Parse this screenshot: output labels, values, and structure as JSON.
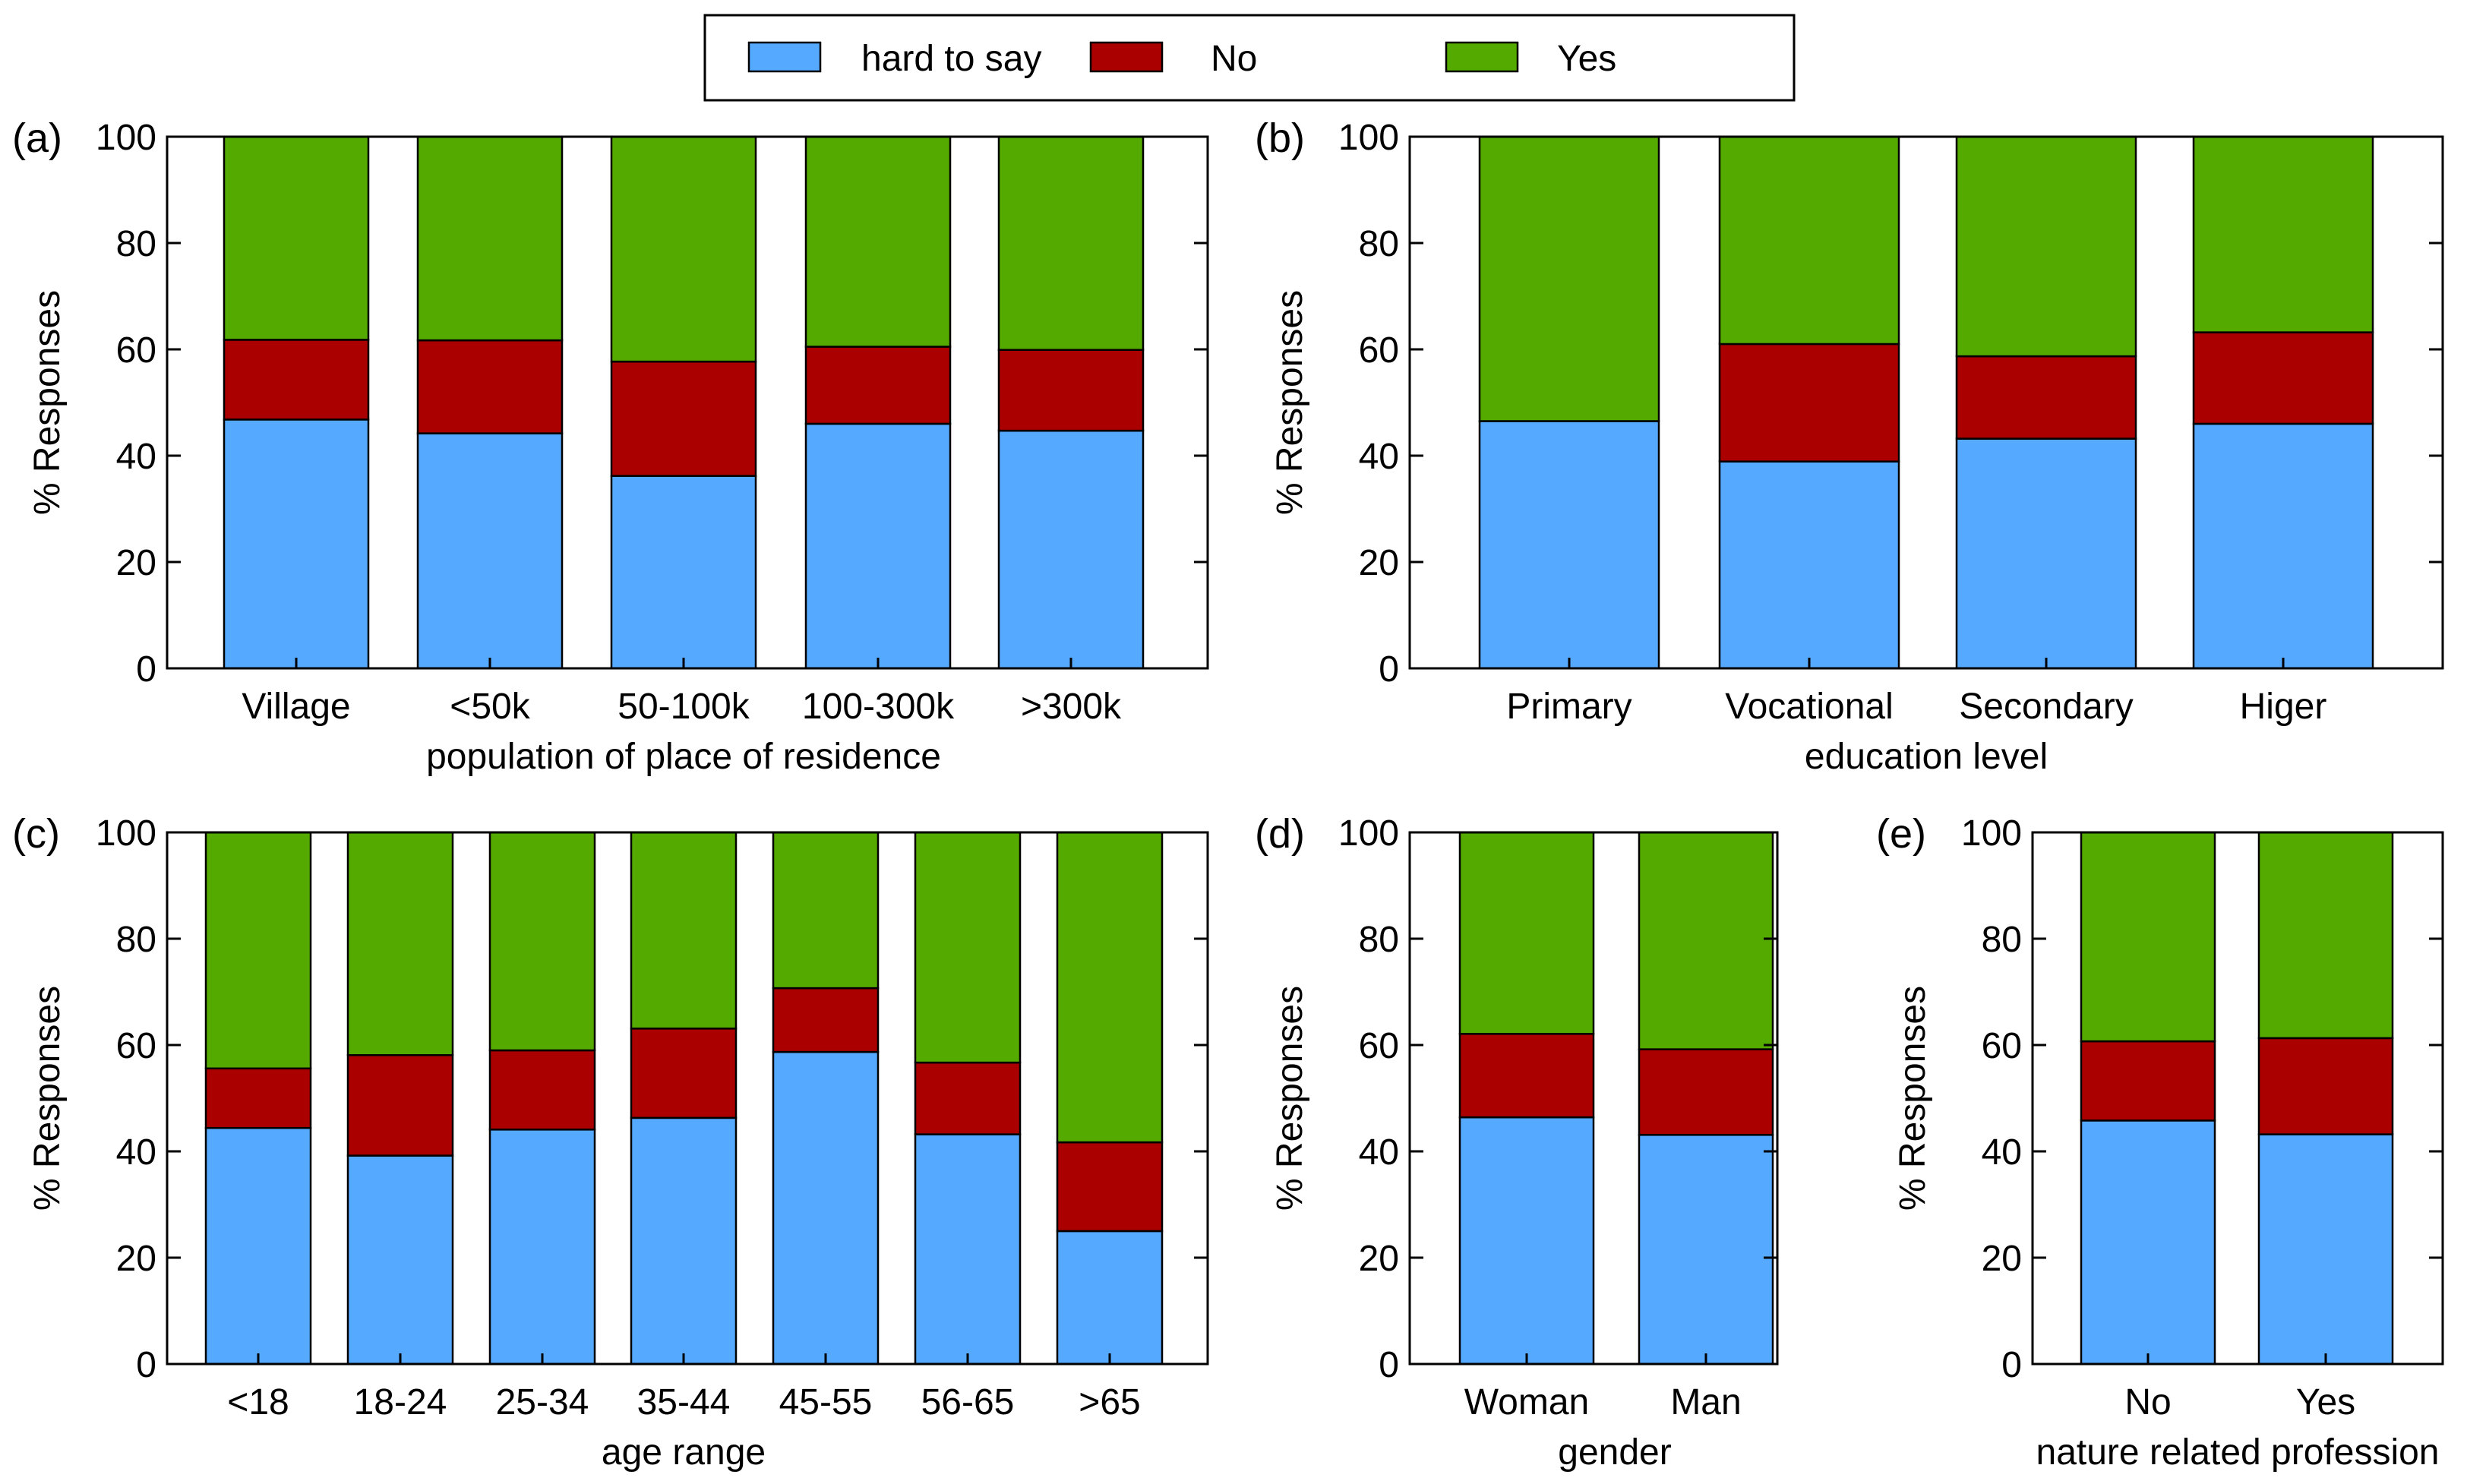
{
  "legend": [
    {
      "label": "hard to say",
      "color": "#55aaff"
    },
    {
      "label": "No",
      "color": "#aa0000"
    },
    {
      "label": "Yes",
      "color": "#55aa00"
    }
  ],
  "chart_data": [
    {
      "type": "bar",
      "stacked": true,
      "panel_label": "(a)",
      "xlabel": "population of place of residence",
      "ylabel": "% Responses",
      "ylim": [
        0,
        100
      ],
      "yticks": [
        0,
        20,
        40,
        60,
        80,
        100
      ],
      "categories": [
        "Village",
        "<50k",
        "50-100k",
        "100-300k",
        ">300k"
      ],
      "series": [
        {
          "name": "hard to say",
          "values": [
            46.8,
            44.2,
            36.2,
            46.0,
            44.7
          ]
        },
        {
          "name": "No",
          "values": [
            15.0,
            17.5,
            21.5,
            14.5,
            15.2
          ]
        },
        {
          "name": "Yes",
          "values": [
            38.2,
            38.3,
            42.3,
            39.5,
            40.1
          ]
        }
      ]
    },
    {
      "type": "bar",
      "stacked": true,
      "panel_label": "(b)",
      "xlabel": "education level",
      "ylabel": "% Responses",
      "ylim": [
        0,
        100
      ],
      "yticks": [
        0,
        20,
        40,
        60,
        80,
        100
      ],
      "categories": [
        "Primary",
        "Vocational",
        "Secondary",
        "Higer"
      ],
      "series": [
        {
          "name": "hard to say",
          "values": [
            46.5,
            38.9,
            43.2,
            46.0
          ]
        },
        {
          "name": "No",
          "values": [
            0.0,
            22.1,
            15.5,
            17.2
          ]
        },
        {
          "name": "Yes",
          "values": [
            53.5,
            39.0,
            41.3,
            36.8
          ]
        }
      ]
    },
    {
      "type": "bar",
      "stacked": true,
      "panel_label": "(c)",
      "xlabel": "age range",
      "ylabel": "% Responses",
      "ylim": [
        0,
        100
      ],
      "yticks": [
        0,
        20,
        40,
        60,
        80,
        100
      ],
      "categories": [
        "<18",
        "18-24",
        "25-34",
        "35-44",
        "45-55",
        "56-65",
        ">65"
      ],
      "series": [
        {
          "name": "hard to say",
          "values": [
            44.4,
            39.2,
            44.1,
            46.3,
            58.7,
            43.2,
            25.0
          ]
        },
        {
          "name": "No",
          "values": [
            11.2,
            18.9,
            14.9,
            16.8,
            12.0,
            13.5,
            16.7
          ]
        },
        {
          "name": "Yes",
          "values": [
            44.4,
            41.9,
            41.0,
            36.9,
            29.3,
            43.3,
            58.3
          ]
        }
      ]
    },
    {
      "type": "bar",
      "stacked": true,
      "panel_label": "(d)",
      "xlabel": "gender",
      "ylabel": "% Responses",
      "ylim": [
        0,
        100
      ],
      "yticks": [
        0,
        20,
        40,
        60,
        80,
        100
      ],
      "categories": [
        "Woman",
        "Man"
      ],
      "series": [
        {
          "name": "hard to say",
          "values": [
            46.4,
            43.1
          ]
        },
        {
          "name": "No",
          "values": [
            15.7,
            16.1
          ]
        },
        {
          "name": "Yes",
          "values": [
            37.9,
            40.8
          ]
        }
      ]
    },
    {
      "type": "bar",
      "stacked": true,
      "panel_label": "(e)",
      "xlabel": "nature related profession",
      "ylabel": "% Responses",
      "ylim": [
        0,
        100
      ],
      "yticks": [
        0,
        20,
        40,
        60,
        80,
        100
      ],
      "categories": [
        "No",
        "Yes"
      ],
      "series": [
        {
          "name": "hard to say",
          "values": [
            45.8,
            43.2
          ]
        },
        {
          "name": "No",
          "values": [
            14.9,
            18.1
          ]
        },
        {
          "name": "Yes",
          "values": [
            39.3,
            38.7
          ]
        }
      ]
    }
  ]
}
